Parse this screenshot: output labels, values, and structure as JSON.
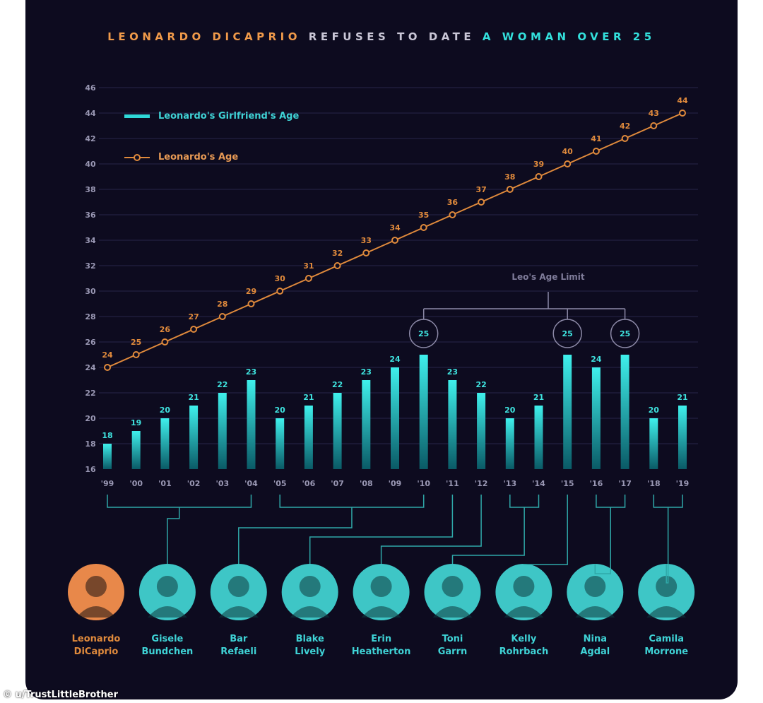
{
  "title": {
    "part1": "LEONARDO DICAPRIO",
    "part2": "REFUSES TO DATE",
    "part3": "A WOMAN OVER 25"
  },
  "chart_data": {
    "type": "bar",
    "categories": [
      "'99",
      "'00",
      "'01",
      "'02",
      "'03",
      "'04",
      "'05",
      "'06",
      "'07",
      "'08",
      "'09",
      "'10",
      "'11",
      "'12",
      "'13",
      "'14",
      "'15",
      "'16",
      "'17",
      "'18",
      "'19"
    ],
    "series": [
      {
        "name": "Leonardo's Girlfriend's Age",
        "type": "bar",
        "values": [
          18,
          19,
          20,
          21,
          22,
          23,
          20,
          21,
          22,
          23,
          24,
          25,
          23,
          22,
          20,
          21,
          25,
          24,
          25,
          20,
          21
        ]
      },
      {
        "name": "Leonardo's Age",
        "type": "line",
        "values": [
          24,
          25,
          26,
          27,
          28,
          29,
          30,
          31,
          32,
          33,
          34,
          35,
          36,
          37,
          38,
          39,
          40,
          41,
          42,
          43,
          44
        ]
      }
    ],
    "ylim": [
      16,
      46
    ],
    "yticks": [
      16,
      18,
      20,
      22,
      24,
      26,
      28,
      30,
      32,
      34,
      36,
      38,
      40,
      42,
      44,
      46
    ],
    "grid": true,
    "legend": "top-left",
    "annotation": {
      "label": "Leo's Age Limit",
      "highlight_value": 25,
      "categories": [
        "'10",
        "'15",
        "'17"
      ]
    },
    "girlfriends": [
      {
        "name1": "Leonardo",
        "name2": "DiCaprio",
        "is_leo": true,
        "from": null,
        "to": null
      },
      {
        "name1": "Gisele",
        "name2": "Bundchen",
        "from": "'99",
        "to": "'04"
      },
      {
        "name1": "Bar",
        "name2": "Refaeli",
        "from": "'05",
        "to": "'10"
      },
      {
        "name1": "Blake",
        "name2": "Lively",
        "from": "'11",
        "to": "'11"
      },
      {
        "name1": "Erin",
        "name2": "Heatherton",
        "from": "'12",
        "to": "'12"
      },
      {
        "name1": "Toni",
        "name2": "Garrn",
        "from": "'13",
        "to": "'14"
      },
      {
        "name1": "Kelly",
        "name2": "Rohrbach",
        "from": "'15",
        "to": "'15"
      },
      {
        "name1": "Nina",
        "name2": "Agdal",
        "from": "'16",
        "to": "'17"
      },
      {
        "name1": "Camila",
        "name2": "Morrone",
        "from": "'18",
        "to": "'19"
      }
    ]
  },
  "colors": {
    "background": "#0d0b1f",
    "teal": "#2fd8d8",
    "orange": "#e08a3c",
    "grid": "#26244a",
    "axis_text": "#9a98b4"
  },
  "credit": "© u/TrustLittleBrother"
}
